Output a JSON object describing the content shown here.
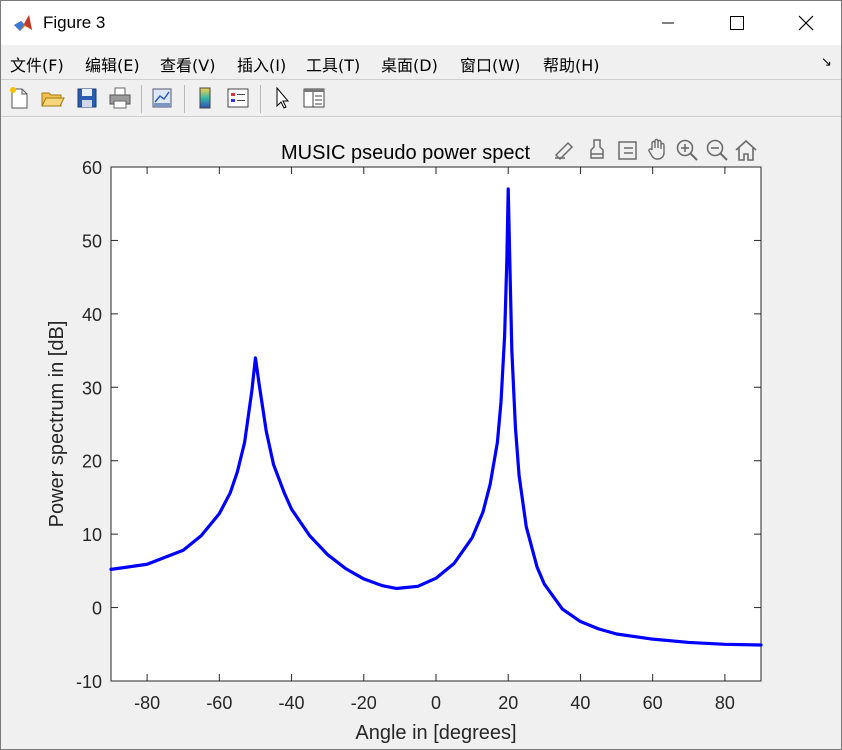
{
  "window": {
    "title": "Figure 3",
    "app_icon": "matlab-icon"
  },
  "menu": {
    "items": [
      {
        "label": "文件(F)",
        "name": "menu-file"
      },
      {
        "label": "编辑(E)",
        "name": "menu-edit"
      },
      {
        "label": "查看(V)",
        "name": "menu-view"
      },
      {
        "label": "插入(I)",
        "name": "menu-insert"
      },
      {
        "label": "工具(T)",
        "name": "menu-tools"
      },
      {
        "label": "桌面(D)",
        "name": "menu-desktop"
      },
      {
        "label": "窗口(W)",
        "name": "menu-window"
      },
      {
        "label": "帮助(H)",
        "name": "menu-help"
      }
    ]
  },
  "toolbar": {
    "buttons": [
      "new-figure-icon",
      "open-file-icon",
      "save-icon",
      "print-icon",
      "link-plot-icon",
      "insert-colorbar-icon",
      "insert-legend-icon",
      "edit-plot-icon",
      "property-inspector-icon"
    ]
  },
  "axes_toolbar": {
    "buttons": [
      "export-icon",
      "brush-icon",
      "data-tips-icon",
      "pan-icon",
      "zoom-in-icon",
      "zoom-out-icon",
      "home-icon"
    ]
  },
  "chart_data": {
    "type": "line",
    "title": "MUSIC pseudo power spect",
    "xlabel": "Angle in [degrees]",
    "ylabel": "Power spectrum in [dB]",
    "xlim": [
      -90,
      90
    ],
    "ylim": [
      -10,
      60
    ],
    "xticks": [
      -80,
      -60,
      -40,
      -20,
      0,
      20,
      40,
      60,
      80
    ],
    "yticks": [
      -10,
      0,
      10,
      20,
      30,
      40,
      50,
      60
    ],
    "grid": false,
    "line_color": "#0000ff",
    "series": [
      {
        "x": [
          -90,
          -80,
          -70,
          -65,
          -60,
          -57,
          -55,
          -53,
          -51,
          -50,
          -49,
          -47,
          -45,
          -42,
          -40,
          -35,
          -30,
          -25,
          -20,
          -15,
          -11,
          -5,
          0,
          5,
          10,
          13,
          15,
          17,
          18,
          19,
          19.6,
          20,
          20.4,
          21,
          22,
          23,
          25,
          28,
          30,
          35,
          40,
          45,
          50,
          60,
          70,
          80,
          90
        ],
        "y": [
          5.2,
          5.9,
          7.8,
          9.8,
          12.8,
          15.6,
          18.5,
          22.5,
          29.5,
          34.0,
          30.5,
          24.0,
          19.5,
          15.6,
          13.4,
          9.8,
          7.2,
          5.3,
          3.9,
          3.0,
          2.6,
          2.9,
          4.0,
          6.0,
          9.5,
          13.0,
          16.8,
          22.5,
          28.0,
          37.0,
          47.0,
          57.0,
          48.0,
          35.0,
          24.5,
          18.0,
          11.0,
          5.5,
          3.2,
          -0.2,
          -1.9,
          -2.9,
          -3.6,
          -4.3,
          -4.75,
          -5.0,
          -5.1
        ]
      }
    ]
  }
}
